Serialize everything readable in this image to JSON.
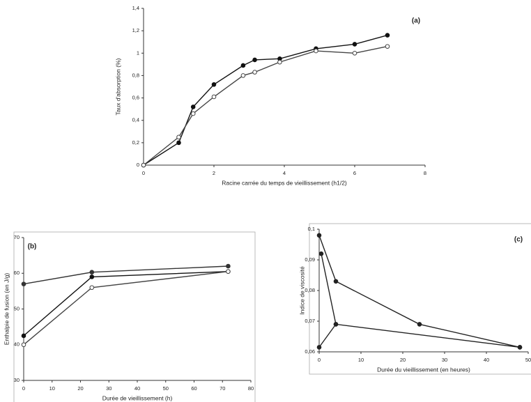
{
  "chart_data": [
    {
      "type": "line",
      "title": "(a)",
      "x_label": "Racine carrée du temps de vieillissement (h1/2)",
      "y_label": "Taux d'absorption (%)",
      "xlim": [
        0,
        8
      ],
      "xticks": [
        0,
        2,
        4,
        6,
        8
      ],
      "ylim": [
        0,
        1.4
      ],
      "yticks": [
        0,
        {
          "value": 0.2,
          "label": "0,2"
        },
        {
          "value": 0.4,
          "label": "0,4"
        },
        {
          "value": 0.6,
          "label": "0,6"
        },
        {
          "value": 0.8,
          "label": "0,8"
        },
        1,
        {
          "value": 1.2,
          "label": "1,2"
        },
        {
          "value": 1.4,
          "label": "1,4"
        }
      ],
      "series": [
        {
          "color": "#111111",
          "marker": "filled",
          "x": [
            0,
            1,
            1.41,
            2,
            2.83,
            3.16,
            3.87,
            4.9,
            6,
            6.93
          ],
          "values": [
            0,
            0.2,
            0.52,
            0.72,
            0.89,
            0.94,
            0.95,
            1.04,
            1.08,
            1.16
          ]
        },
        {
          "color": "#444444",
          "marker": "open",
          "x": [
            0,
            1,
            1.41,
            2,
            2.83,
            3.16,
            3.87,
            4.9,
            6,
            6.93
          ],
          "values": [
            0,
            0.25,
            0.46,
            0.61,
            0.8,
            0.83,
            0.92,
            1.02,
            1.0,
            1.06
          ]
        }
      ]
    },
    {
      "type": "line",
      "title": "(b)",
      "x_label": "Durée de vieillissement (h)",
      "y_label": "Enthalpie de fusion (en J/g)",
      "xlim": [
        0,
        80
      ],
      "xticks": [
        0,
        10,
        20,
        30,
        40,
        50,
        60,
        70,
        80
      ],
      "ylim": [
        30,
        70
      ],
      "yticks": [
        30,
        40,
        50,
        60,
        70
      ],
      "series": [
        {
          "color": "#333333",
          "marker": "filled",
          "x": [
            0,
            24,
            72
          ],
          "values": [
            57,
            60.3,
            62
          ]
        },
        {
          "color": "#111111",
          "marker": "filled",
          "x": [
            0,
            24,
            72
          ],
          "values": [
            42.5,
            59,
            60.5
          ]
        },
        {
          "color": "#444444",
          "marker": "open",
          "x": [
            0,
            24,
            72
          ],
          "values": [
            40,
            56,
            60.5
          ]
        }
      ]
    },
    {
      "type": "line",
      "title": "(c)",
      "x_label": "Durée du vieillissement (en heures)",
      "y_label": "Indice de viscosité",
      "xlim": [
        0,
        50
      ],
      "xticks": [
        0,
        10,
        20,
        30,
        40,
        50
      ],
      "ylim": [
        0.06,
        0.1
      ],
      "yticks": [
        {
          "value": 0.06,
          "label": "0,06"
        },
        {
          "value": 0.07,
          "label": "0,07"
        },
        {
          "value": 0.08,
          "label": "0,08"
        },
        {
          "value": 0.09,
          "label": "0,09"
        },
        {
          "value": 0.1,
          "label": "0,1"
        }
      ],
      "series": [
        {
          "color": "#222222",
          "marker": "filled",
          "x": [
            0,
            4,
            24,
            48
          ],
          "values": [
            0.098,
            0.083,
            0.069,
            0.0615
          ]
        },
        {
          "color": "#222222",
          "marker": "filled",
          "x": [
            0.5,
            4,
            48
          ],
          "values": [
            0.092,
            0.069,
            0.0615
          ]
        },
        {
          "color": "#222222",
          "marker": "filled",
          "x": [
            0,
            4
          ],
          "values": [
            0.0615,
            0.069
          ]
        }
      ]
    }
  ]
}
